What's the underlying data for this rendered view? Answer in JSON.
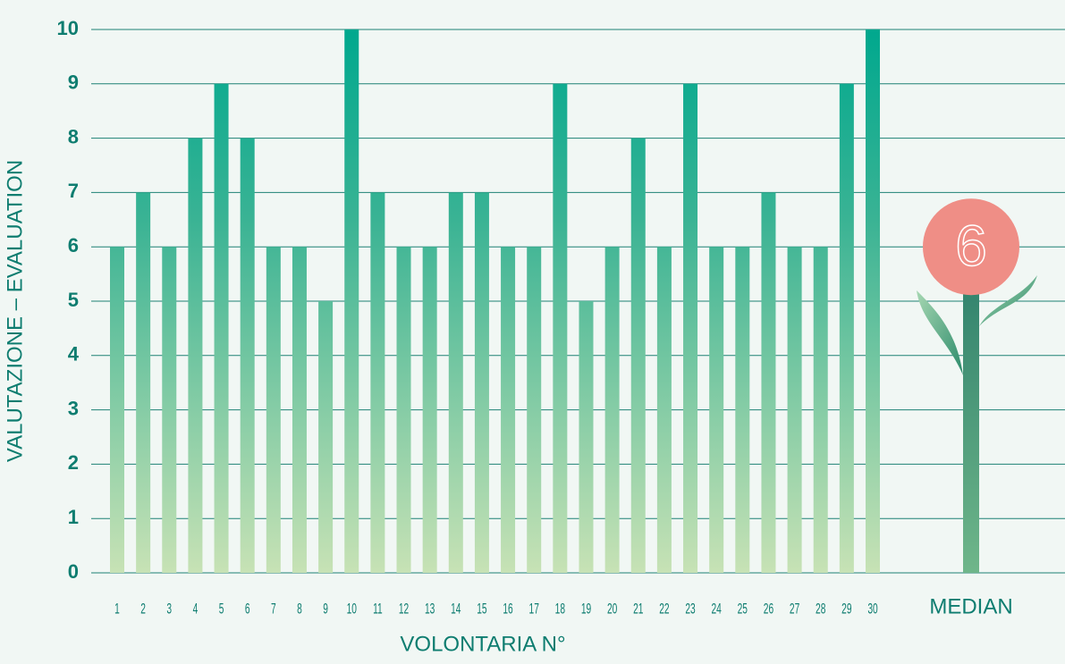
{
  "chart_data": {
    "type": "bar",
    "y_label": "VALUTAZIONE – EVALUATION",
    "x_label": "VOLONTARIA N°",
    "categories": [
      "1",
      "2",
      "3",
      "4",
      "5",
      "6",
      "7",
      "8",
      "9",
      "10",
      "11",
      "12",
      "13",
      "14",
      "15",
      "16",
      "17",
      "18",
      "19",
      "20",
      "21",
      "22",
      "23",
      "24",
      "25",
      "26",
      "27",
      "28",
      "29",
      "30"
    ],
    "values": [
      6,
      7,
      6,
      8,
      9,
      8,
      6,
      6,
      5,
      10,
      7,
      6,
      6,
      7,
      7,
      6,
      6,
      9,
      5,
      6,
      8,
      6,
      9,
      6,
      6,
      7,
      6,
      6,
      9,
      10
    ],
    "ylim": [
      0,
      10
    ],
    "yticks": [
      0,
      1,
      2,
      3,
      4,
      5,
      6,
      7,
      8,
      9,
      10
    ],
    "grid": true,
    "median": {
      "label": "MEDIAN",
      "value": 6
    }
  }
}
